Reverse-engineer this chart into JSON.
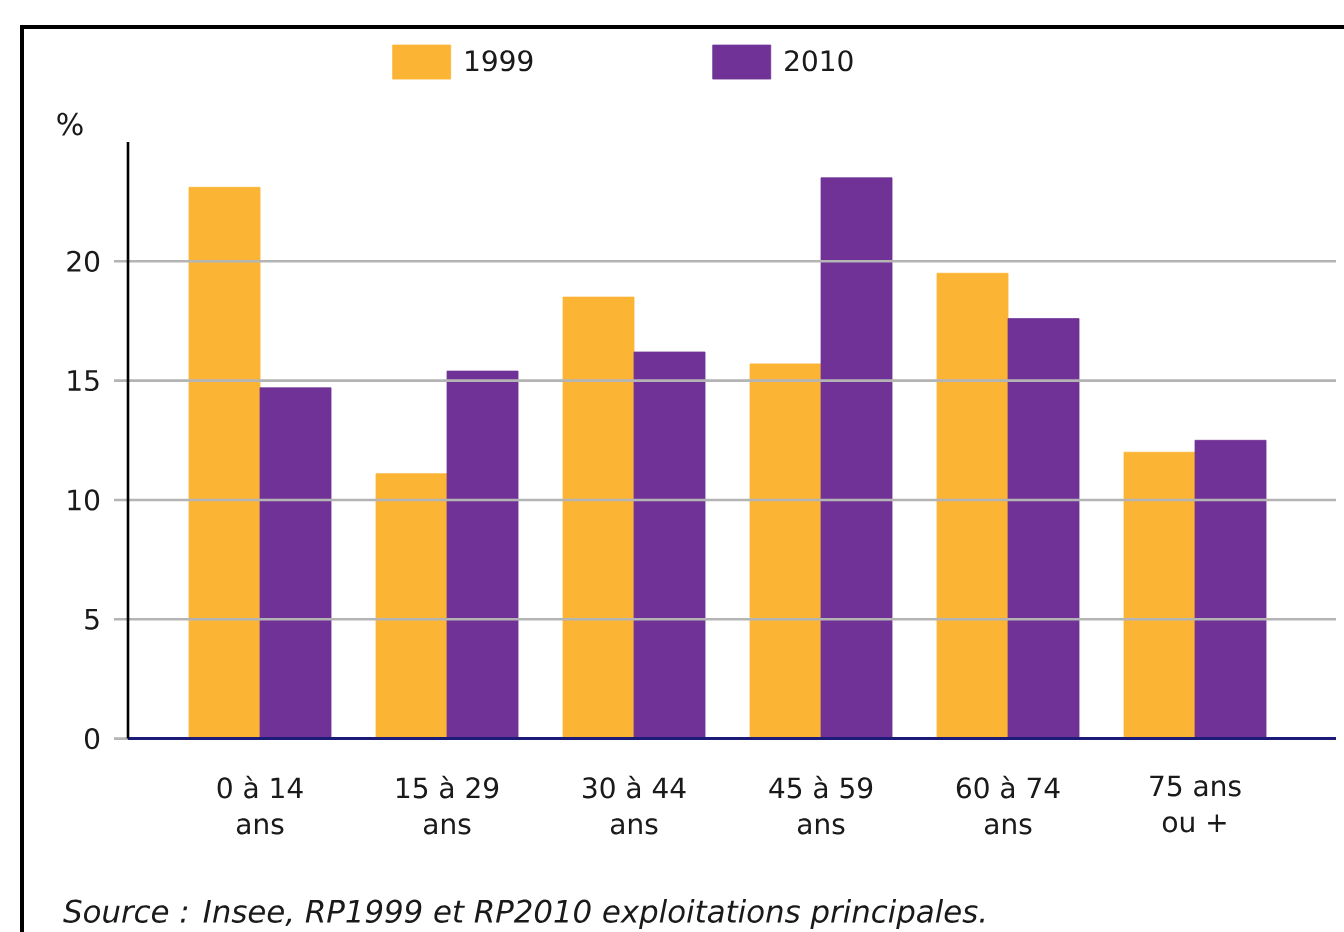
{
  "chart_data": {
    "type": "bar",
    "categories": [
      "0 à 14 ans",
      "15 à 29 ans",
      "30 à 44 ans",
      "45 à 59 ans",
      "60 à 74 ans",
      "75 ans ou +"
    ],
    "series": [
      {
        "name": "1999",
        "color": "#fcb434",
        "values": [
          23.1,
          11.1,
          18.5,
          15.7,
          19.5,
          12.0
        ]
      },
      {
        "name": "2010",
        "color": "#703296",
        "values": [
          14.7,
          15.4,
          16.2,
          23.5,
          17.6,
          12.5
        ]
      }
    ],
    "ylabel": "%",
    "ylim": [
      0,
      25
    ],
    "yticks": [
      0,
      5,
      10,
      15,
      20
    ],
    "grid": "y",
    "legend": "top",
    "annotations": [
      "Source : Insee, RP1999 et RP2010 exploitations principales."
    ]
  }
}
